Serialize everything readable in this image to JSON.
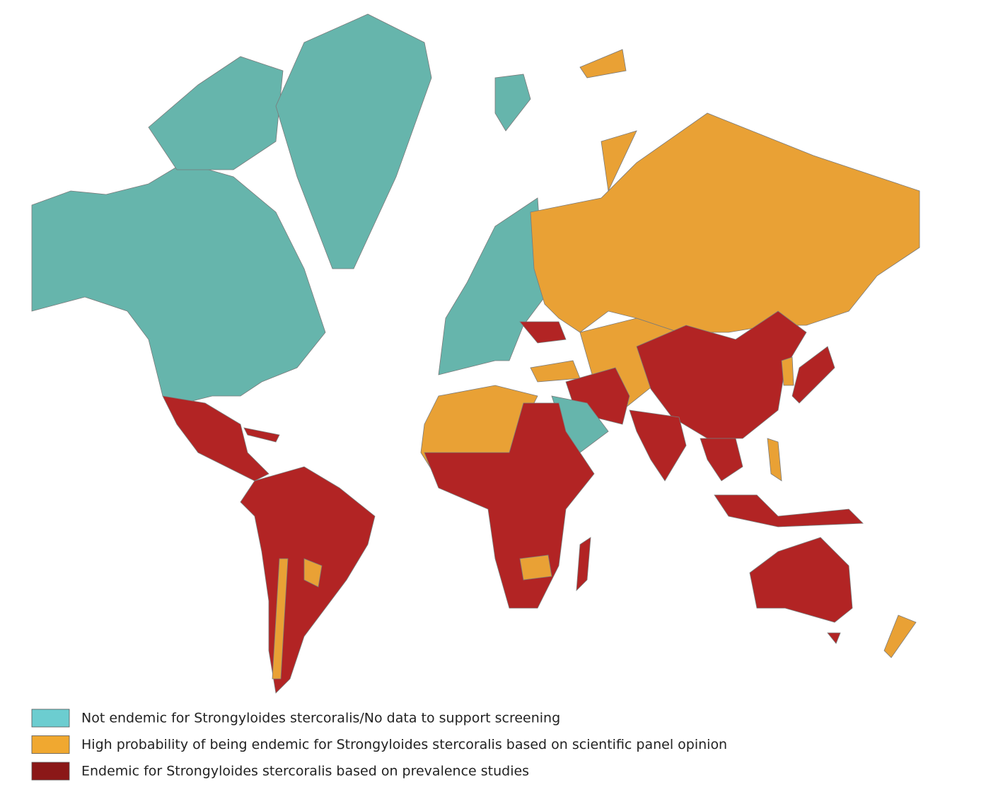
{
  "legend": [
    {
      "label": "Not endemic for Strongyloides stercoralis/No data to support screening",
      "color": "#6ccdd0"
    },
    {
      "label": "High probability of being endemic for Strongyloides stercoralis based on scientific panel opinion",
      "color": "#f0a830"
    },
    {
      "label": "Endemic for Strongyloides stercoralis based on prevalence studies",
      "color": "#8b1818"
    }
  ]
}
